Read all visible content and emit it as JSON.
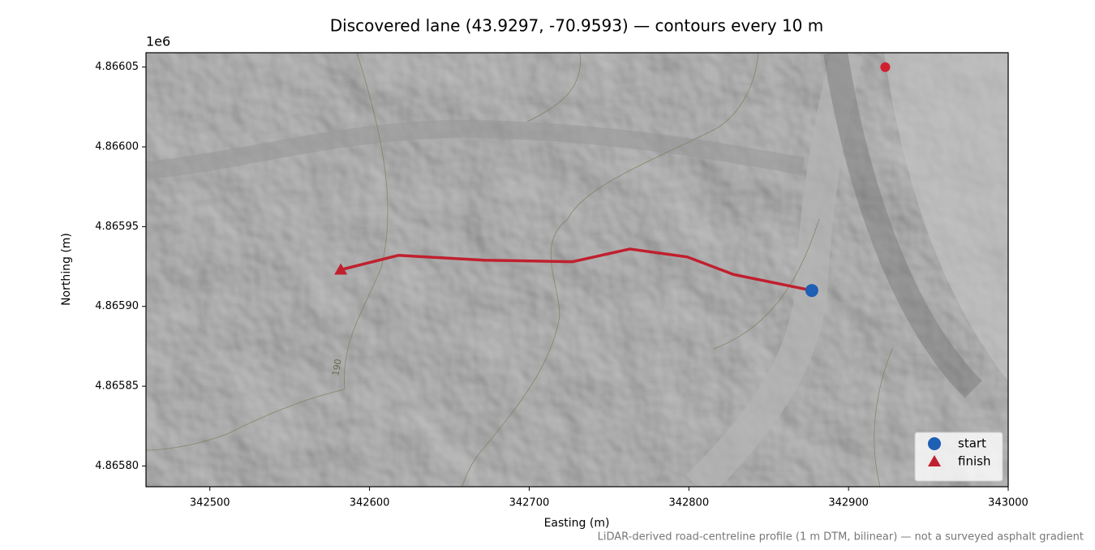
{
  "chart_data": {
    "type": "line",
    "title": "Discovered lane (43.9297, -70.9593) — contours every 10 m",
    "xlabel": "Easting (m)",
    "ylabel": "Northing (m)",
    "y_offset_label": "1e6",
    "footnote": "LiDAR-derived road-centreline profile (1 m DTM, bilinear) — not a surveyed asphalt gradient",
    "contour_label": "190",
    "xlim": [
      342460,
      343000
    ],
    "ylim": [
      4865787,
      4866059
    ],
    "xticks": [
      342500,
      342600,
      342700,
      342800,
      342900,
      343000
    ],
    "yticks": [
      {
        "value": 4865800,
        "label": "4.86580"
      },
      {
        "value": 4865850,
        "label": "4.86585"
      },
      {
        "value": 4865900,
        "label": "4.86590"
      },
      {
        "value": 4865950,
        "label": "4.86595"
      },
      {
        "value": 4866000,
        "label": "4.86600"
      },
      {
        "value": 4866050,
        "label": "4.86605"
      }
    ],
    "series": [
      {
        "color": "#c0202e",
        "x": [
          342582,
          342618,
          342672,
          342727,
          342763,
          342799,
          342828,
          342877
        ],
        "values": [
          4865923,
          4865932,
          4865929,
          4865928,
          4865936,
          4865931,
          4865920,
          4865910
        ]
      }
    ],
    "points": [
      {
        "name": "start",
        "marker": "circle",
        "color": "#1f5fb4",
        "x": 342877,
        "y": 4865910
      },
      {
        "name": "finish",
        "marker": "triangle",
        "color": "#c0202e",
        "x": 342582,
        "y": 4865923
      },
      {
        "marker": "circle",
        "color": "#d0202e",
        "x": 342923,
        "y": 4866050
      }
    ],
    "legend": "lower right"
  }
}
